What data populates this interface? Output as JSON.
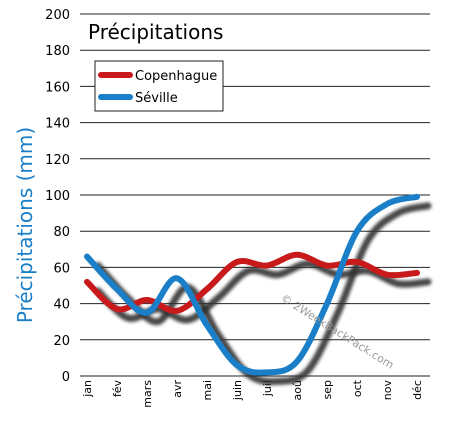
{
  "chart_data": {
    "type": "line",
    "title": "Précipitations",
    "xlabel": "",
    "ylabel": "Précipitations (mm)",
    "categories": [
      "jan",
      "fév",
      "mars",
      "avr",
      "mai",
      "juin",
      "juil",
      "aoû",
      "sep",
      "oct",
      "nov",
      "déc"
    ],
    "ylim": [
      0,
      200
    ],
    "yticks": [
      0,
      20,
      40,
      60,
      80,
      100,
      120,
      140,
      160,
      180,
      200
    ],
    "grid": true,
    "legend_position": "top-left",
    "series": [
      {
        "name": "Copenhague",
        "color": "#c81a1a",
        "values": [
          52,
          37,
          42,
          36,
          48,
          63,
          61,
          67,
          61,
          63,
          56,
          57
        ]
      },
      {
        "name": "Séville",
        "color": "#1a7fc8",
        "values": [
          66,
          48,
          35,
          54,
          28,
          6,
          2,
          8,
          40,
          80,
          95,
          99
        ]
      }
    ],
    "watermark": "© 2WeekBackPack.com"
  }
}
